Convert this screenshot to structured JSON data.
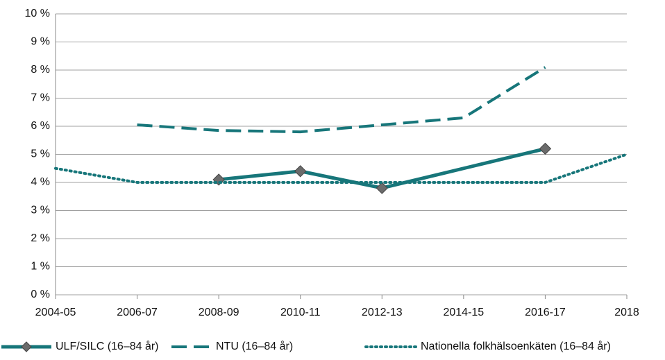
{
  "chart_data": {
    "type": "line",
    "categories": [
      "2004-05",
      "2006-07",
      "2008-09",
      "2010-11",
      "2012-13",
      "2014-15",
      "2016-17",
      "2018"
    ],
    "series": [
      {
        "name": "ULF/SILC (16–84 år)",
        "color": "#17767a",
        "style": "solid",
        "marker": "diamond",
        "values": [
          null,
          null,
          4.1,
          4.4,
          3.8,
          4.5,
          5.2,
          null
        ]
      },
      {
        "name": "NTU (16–84 år)",
        "color": "#17767a",
        "style": "dashed",
        "values": [
          null,
          6.05,
          5.85,
          5.8,
          6.05,
          6.3,
          8.1,
          null
        ]
      },
      {
        "name": "Nationella folkhälsoenkäten (16–84 år)",
        "color": "#17767a",
        "style": "dotted",
        "values": [
          4.5,
          4.0,
          4.0,
          4.0,
          4.0,
          4.0,
          4.0,
          5.0
        ]
      }
    ],
    "ylim": [
      0,
      10
    ],
    "yticks": [
      {
        "value": 0,
        "label": "0 %"
      },
      {
        "value": 1,
        "label": "1 %"
      },
      {
        "value": 2,
        "label": "2 %"
      },
      {
        "value": 3,
        "label": "3 %"
      },
      {
        "value": 4,
        "label": "4 %"
      },
      {
        "value": 5,
        "label": "5 %"
      },
      {
        "value": 6,
        "label": "6 %"
      },
      {
        "value": 7,
        "label": "7 %"
      },
      {
        "value": 8,
        "label": "8 %"
      },
      {
        "value": 9,
        "label": "9 %"
      },
      {
        "value": 10,
        "label": "10 %"
      }
    ],
    "grid": true,
    "legend": "bottom"
  }
}
